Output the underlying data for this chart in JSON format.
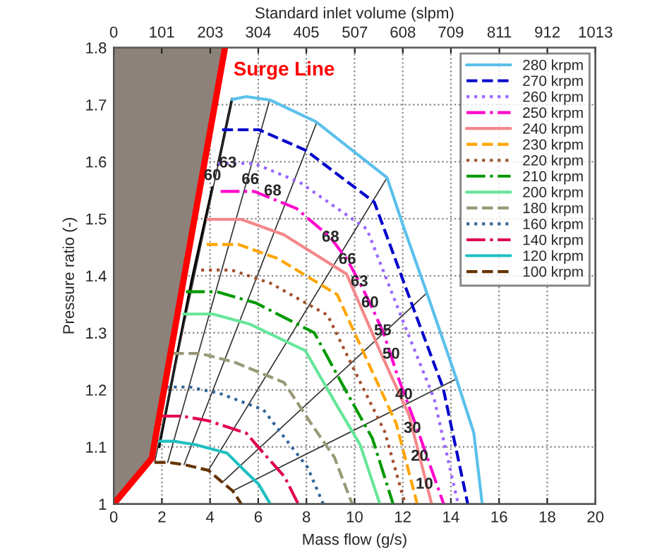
{
  "chart_data": {
    "type": "line",
    "xlabel": "Mass flow (g/s)",
    "ylabel": "Pressure ratio (-)",
    "x2label": "Standard inlet volume (slpm)",
    "xlim": [
      0,
      20
    ],
    "xticks": [
      0,
      2,
      4,
      6,
      8,
      10,
      12,
      14,
      16,
      18,
      20
    ],
    "x2lim": [
      0,
      1013
    ],
    "x2ticks": [
      0,
      101,
      203,
      304,
      405,
      507,
      608,
      709,
      811,
      912,
      1013
    ],
    "ylim": [
      1,
      1.8
    ],
    "yticks": [
      1,
      1.1,
      1.2,
      1.3,
      1.4,
      1.5,
      1.6,
      1.7,
      1.8
    ],
    "grid": true,
    "legend": "top right",
    "marker": "none",
    "series": [
      {
        "name": "280 krpm",
        "color": "#5bc0eb",
        "line_style": "solid",
        "x": [
          4.91,
          5.5,
          6.5,
          8.4,
          11.35,
          12.0,
          13.0,
          14.2,
          14.95,
          15.3
        ],
        "values": [
          1.709,
          1.714,
          1.708,
          1.67,
          1.572,
          1.49,
          1.37,
          1.223,
          1.125,
          1.0
        ]
      },
      {
        "name": "270 krpm",
        "color": "#0000cc",
        "line_style": "dashed",
        "x": [
          4.5,
          6.03,
          7.97,
          10.82,
          12.46,
          13.68,
          14.7
        ],
        "values": [
          1.656,
          1.656,
          1.62,
          1.529,
          1.341,
          1.203,
          1.0
        ]
      },
      {
        "name": "260 krpm",
        "color": "#9966ff",
        "line_style": "dotted",
        "x": [
          4.33,
          5.83,
          7.72,
          10.51,
          12.11,
          13.3,
          14.3
        ],
        "values": [
          1.597,
          1.597,
          1.564,
          1.482,
          1.31,
          1.185,
          1.0
        ]
      },
      {
        "name": "250 krpm",
        "color": "#ff00cc",
        "line_style": "dashdot",
        "x": [
          4.44,
          5.83,
          7.59,
          9.0,
          9.7,
          10.2,
          10.64,
          11.2,
          11.8,
          12.6,
          13.2,
          13.7
        ],
        "values": [
          1.548,
          1.548,
          1.518,
          1.467,
          1.428,
          1.389,
          1.352,
          1.3,
          1.223,
          1.132,
          1.06,
          1.0
        ]
      },
      {
        "name": "240 krpm",
        "color": "#f4888a",
        "line_style": "solid",
        "x": [
          3.9,
          5.3,
          7.06,
          9.67,
          11.15,
          12.27,
          13.2
        ],
        "values": [
          1.499,
          1.499,
          1.472,
          1.403,
          1.259,
          1.155,
          1.0
        ]
      },
      {
        "name": "230 krpm",
        "color": "#ffa500",
        "line_style": "dashed",
        "x": [
          3.86,
          5.17,
          6.83,
          9.28,
          10.68,
          11.73,
          12.6
        ],
        "values": [
          1.455,
          1.455,
          1.43,
          1.367,
          1.237,
          1.141,
          1.0
        ]
      },
      {
        "name": "220 krpm",
        "color": "#a0522d",
        "line_style": "dotted",
        "x": [
          3.63,
          4.9,
          6.51,
          8.88,
          10.24,
          11.25,
          12.1
        ],
        "values": [
          1.41,
          1.41,
          1.387,
          1.331,
          1.213,
          1.127,
          1.0
        ]
      },
      {
        "name": "210 krpm",
        "color": "#009900",
        "line_style": "dashdot",
        "x": [
          3.0,
          4.29,
          5.92,
          8.33,
          9.71,
          10.74,
          11.6
        ],
        "values": [
          1.372,
          1.372,
          1.352,
          1.3,
          1.193,
          1.115,
          1.0
        ]
      },
      {
        "name": "200 krpm",
        "color": "#66e699",
        "line_style": "solid",
        "x": [
          2.9,
          4.12,
          5.67,
          7.95,
          9.26,
          10.24,
          11.05
        ],
        "values": [
          1.333,
          1.333,
          1.315,
          1.269,
          1.173,
          1.103,
          1.0
        ]
      },
      {
        "name": "180 krpm",
        "color": "#999977",
        "line_style": "dashed",
        "x": [
          2.46,
          3.58,
          4.99,
          7.07,
          8.26,
          9.16,
          9.9
        ],
        "values": [
          1.264,
          1.264,
          1.249,
          1.213,
          1.137,
          1.082,
          1.0
        ]
      },
      {
        "name": "160 krpm",
        "color": "#336699",
        "line_style": "dotted",
        "x": [
          2.17,
          3.15,
          4.39,
          6.22,
          7.26,
          8.05,
          8.7
        ],
        "values": [
          1.205,
          1.205,
          1.194,
          1.165,
          1.107,
          1.064,
          1.0
        ]
      },
      {
        "name": "140 krpm",
        "color": "#e0004d",
        "line_style": "dashdot",
        "x": [
          1.99,
          2.84,
          3.92,
          5.51,
          6.41,
          7.09,
          7.66
        ],
        "values": [
          1.154,
          1.154,
          1.146,
          1.124,
          1.08,
          1.048,
          1.0
        ]
      },
      {
        "name": "120 krpm",
        "color": "#20c0c0",
        "line_style": "solid",
        "x": [
          1.8,
          2.51,
          3.4,
          4.71,
          5.47,
          6.03,
          6.5
        ],
        "values": [
          1.11,
          1.11,
          1.104,
          1.089,
          1.057,
          1.034,
          1.0
        ]
      },
      {
        "name": "100 krpm",
        "color": "#663300",
        "line_style": "dashed",
        "x": [
          1.7,
          2.24,
          2.92,
          3.93,
          4.51,
          4.94,
          5.3
        ],
        "values": [
          1.073,
          1.073,
          1.069,
          1.059,
          1.038,
          1.023,
          1.0
        ]
      },
      {
        "name": "Surge Line",
        "color": "#ff0000",
        "line_style": "solid",
        "x": [
          0,
          1.58,
          4.62
        ],
        "values": [
          1.0,
          1.08,
          1.8
        ]
      },
      {
        "color": "#000000",
        "line_style": "solid",
        "x": [
          1.88,
          3.25,
          4.1,
          null,
          4.33,
          4.91
        ],
        "values": [
          1.1,
          1.394,
          1.555,
          null,
          1.594,
          1.71
        ]
      },
      {
        "color": "#333333",
        "line_style": "solid",
        "x": [
          1.7,
          4.91,
          null,
          2.24,
          6.47,
          null,
          2.92,
          8.44,
          null,
          3.93,
          11.35,
          null,
          4.51,
          13.0,
          null,
          4.94,
          14.26
        ],
        "values": [
          1.073,
          1.709,
          null,
          1.073,
          1.708,
          null,
          1.069,
          1.67,
          null,
          1.059,
          1.572,
          null,
          1.038,
          1.37,
          null,
          1.023,
          1.22
        ]
      }
    ],
    "annotations": [
      {
        "text": "60",
        "x": 4.1,
        "y": 1.575
      },
      {
        "text": "63",
        "x": 4.74,
        "y": 1.597
      },
      {
        "text": "66",
        "x": 5.67,
        "y": 1.568
      },
      {
        "text": "68",
        "x": 6.6,
        "y": 1.548
      },
      {
        "text": "68",
        "x": 9.0,
        "y": 1.467
      },
      {
        "text": "66",
        "x": 9.7,
        "y": 1.428
      },
      {
        "text": "63",
        "x": 10.2,
        "y": 1.389
      },
      {
        "text": "60",
        "x": 10.64,
        "y": 1.352
      },
      {
        "text": "55",
        "x": 11.17,
        "y": 1.303
      },
      {
        "text": "50",
        "x": 11.52,
        "y": 1.262
      },
      {
        "text": "40",
        "x": 12.05,
        "y": 1.191
      },
      {
        "text": "30",
        "x": 12.4,
        "y": 1.132
      },
      {
        "text": "20",
        "x": 12.7,
        "y": 1.083
      },
      {
        "text": "10",
        "x": 12.9,
        "y": 1.034
      }
    ]
  }
}
